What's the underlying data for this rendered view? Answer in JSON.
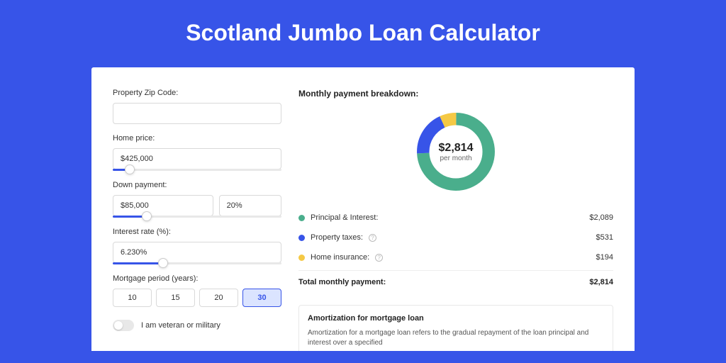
{
  "page": {
    "title": "Scotland Jumbo Loan Calculator",
    "background_color": "#3754e8"
  },
  "inputs": {
    "zip": {
      "label": "Property Zip Code:",
      "value": ""
    },
    "home_price": {
      "label": "Home price:",
      "value": "$425,000",
      "slider_pct": 10
    },
    "down_payment": {
      "label": "Down payment:",
      "value": "$85,000",
      "pct_value": "20%",
      "slider_pct": 20
    },
    "interest_rate": {
      "label": "Interest rate (%):",
      "value": "6.230%",
      "slider_pct": 30
    },
    "mortgage_period": {
      "label": "Mortgage period (years):",
      "options": [
        "10",
        "15",
        "20",
        "30"
      ],
      "active_index": 3
    },
    "veteran": {
      "label": "I am veteran or military",
      "checked": false
    }
  },
  "breakdown": {
    "title": "Monthly payment breakdown:",
    "donut": {
      "amount": "$2,814",
      "sub": "per month",
      "slices": [
        {
          "color": "#4aae8c",
          "pct": 74.2
        },
        {
          "color": "#3754e8",
          "pct": 18.9
        },
        {
          "color": "#f5c945",
          "pct": 6.9
        }
      ],
      "stroke_width": 15
    },
    "legend": [
      {
        "dot_color": "#4aae8c",
        "label": "Principal & Interest:",
        "amount": "$2,089",
        "info": false
      },
      {
        "dot_color": "#3754e8",
        "label": "Property taxes:",
        "amount": "$531",
        "info": true
      },
      {
        "dot_color": "#f5c945",
        "label": "Home insurance:",
        "amount": "$194",
        "info": true
      }
    ],
    "total": {
      "label": "Total monthly payment:",
      "amount": "$2,814"
    }
  },
  "amortization": {
    "title": "Amortization for mortgage loan",
    "text": "Amortization for a mortgage loan refers to the gradual repayment of the loan principal and interest over a specified"
  }
}
